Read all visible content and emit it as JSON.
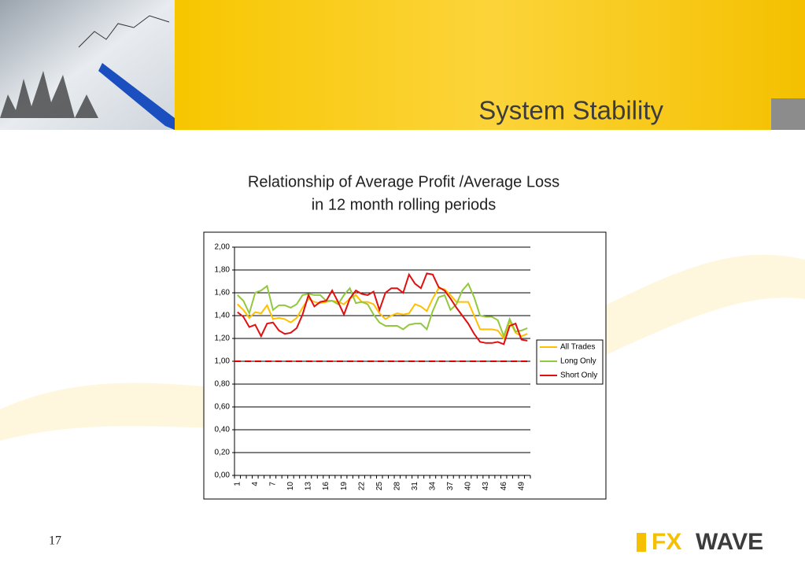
{
  "slide": {
    "heading": "System Stability",
    "page_number": "17",
    "logo": {
      "left": "FX",
      "right": "WAVE"
    }
  },
  "chart_data": {
    "type": "line",
    "title": "Relationship of Average Profit /Average Loss",
    "subtitle": "in 12 month rolling periods",
    "categories": [
      "1",
      null,
      null,
      "4",
      null,
      null,
      "7",
      null,
      null,
      "10",
      null,
      null,
      "13",
      null,
      null,
      "16",
      null,
      null,
      "19",
      null,
      null,
      "22",
      null,
      null,
      "25",
      null,
      null,
      "28",
      null,
      null,
      "31",
      null,
      null,
      "34",
      null,
      null,
      "37",
      null,
      null,
      "40",
      null,
      null,
      "43",
      null,
      null,
      "46",
      null,
      null,
      "49",
      null
    ],
    "ylim": [
      0,
      2
    ],
    "yticks": [
      {
        "value": 0,
        "label": "0,00"
      },
      {
        "value": 0.2,
        "label": "0,20"
      },
      {
        "value": 0.4,
        "label": "0,40"
      },
      {
        "value": 0.6,
        "label": "0,60"
      },
      {
        "value": 0.8,
        "label": "0,80"
      },
      {
        "value": 1,
        "label": "1,00"
      },
      {
        "value": 1.2,
        "label": "1,20"
      },
      {
        "value": 1.4,
        "label": "1,40"
      },
      {
        "value": 1.6,
        "label": "1,60"
      },
      {
        "value": 1.8,
        "label": "1,80"
      },
      {
        "value": 2,
        "label": "2,00"
      }
    ],
    "grid": true,
    "legend": "right",
    "reference_line": {
      "value": 1,
      "color": "#e00000"
    },
    "series": [
      {
        "name": "All Trades",
        "color": "#ffc000",
        "values": [
          1.5,
          1.45,
          1.38,
          1.43,
          1.42,
          1.49,
          1.37,
          1.38,
          1.37,
          1.34,
          1.38,
          1.47,
          1.55,
          1.52,
          1.51,
          1.52,
          1.53,
          1.52,
          1.5,
          1.55,
          1.58,
          1.52,
          1.52,
          1.5,
          1.42,
          1.37,
          1.4,
          1.42,
          1.41,
          1.42,
          1.5,
          1.48,
          1.44,
          1.55,
          1.64,
          1.63,
          1.58,
          1.52,
          1.52,
          1.52,
          1.4,
          1.28,
          1.28,
          1.28,
          1.27,
          1.2,
          1.35,
          1.25,
          1.22,
          1.24
        ]
      },
      {
        "name": "Long Only",
        "color": "#92c83e",
        "values": [
          1.58,
          1.53,
          1.42,
          1.6,
          1.62,
          1.66,
          1.45,
          1.49,
          1.49,
          1.47,
          1.5,
          1.58,
          1.59,
          1.58,
          1.58,
          1.53,
          1.53,
          1.5,
          1.58,
          1.64,
          1.51,
          1.52,
          1.5,
          1.41,
          1.34,
          1.31,
          1.31,
          1.31,
          1.28,
          1.32,
          1.33,
          1.33,
          1.28,
          1.44,
          1.56,
          1.58,
          1.45,
          1.5,
          1.62,
          1.68,
          1.56,
          1.4,
          1.39,
          1.39,
          1.36,
          1.22,
          1.37,
          1.26,
          1.27,
          1.29
        ]
      },
      {
        "name": "Short Only",
        "color": "#e01010",
        "values": [
          1.43,
          1.39,
          1.3,
          1.32,
          1.22,
          1.33,
          1.34,
          1.27,
          1.24,
          1.25,
          1.29,
          1.41,
          1.58,
          1.48,
          1.52,
          1.53,
          1.62,
          1.52,
          1.41,
          1.55,
          1.62,
          1.59,
          1.58,
          1.61,
          1.45,
          1.6,
          1.64,
          1.64,
          1.6,
          1.76,
          1.68,
          1.64,
          1.77,
          1.76,
          1.65,
          1.62,
          1.55,
          1.47,
          1.4,
          1.33,
          1.24,
          1.17,
          1.16,
          1.16,
          1.17,
          1.15,
          1.31,
          1.33,
          1.19,
          1.18
        ]
      }
    ]
  }
}
